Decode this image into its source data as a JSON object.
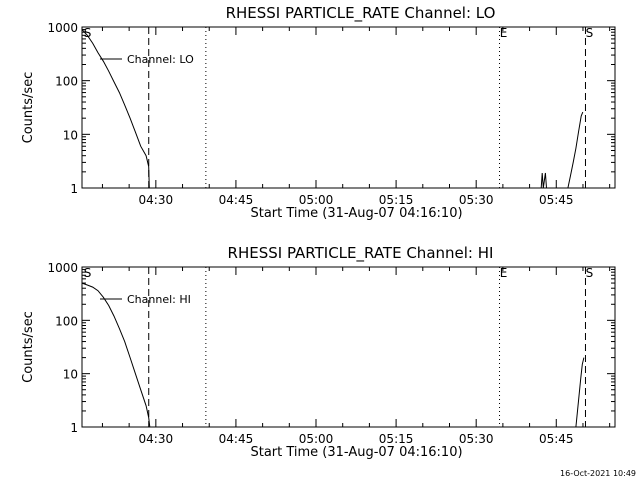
{
  "footer": {
    "timestamp": "16-Oct-2021 10:49"
  },
  "chart_data": [
    {
      "type": "line",
      "title": "RHESSI PARTICLE_RATE Channel: LO",
      "xlabel": "Start Time (31-Aug-07 04:16:10)",
      "ylabel": "Counts/sec",
      "x_unit": "minutes after 04:16:10",
      "xlim": [
        0,
        99.83
      ],
      "ylim": [
        1,
        1000
      ],
      "yscale": "log",
      "x_ticks": [
        {
          "value": 13.83,
          "label": "04:30"
        },
        {
          "value": 28.83,
          "label": "04:45"
        },
        {
          "value": 43.83,
          "label": "05:00"
        },
        {
          "value": 58.83,
          "label": "05:15"
        },
        {
          "value": 73.83,
          "label": "05:30"
        },
        {
          "value": 88.83,
          "label": "05:45"
        }
      ],
      "y_ticks": [
        {
          "value": 1,
          "label": "1"
        },
        {
          "value": 10,
          "label": "10"
        },
        {
          "value": 100,
          "label": "100"
        },
        {
          "value": 1000,
          "label": "1000"
        }
      ],
      "legend": "Channel: LO",
      "markers": [
        {
          "x": 0.3,
          "label": "S",
          "style": "none"
        },
        {
          "x": 12.5,
          "label": "",
          "style": "dashed"
        },
        {
          "x": 23.2,
          "label": "",
          "style": "dotted"
        },
        {
          "x": 78.2,
          "label": "E",
          "style": "dotted"
        },
        {
          "x": 94.3,
          "label": "S",
          "style": "dashed"
        }
      ],
      "series": [
        {
          "name": "Channel: LO",
          "segments": [
            [
              [
                0,
                900
              ],
              [
                1,
                700
              ],
              [
                2,
                500
              ],
              [
                3,
                330
              ],
              [
                4,
                230
              ],
              [
                5,
                150
              ],
              [
                6,
                95
              ],
              [
                7,
                60
              ],
              [
                8,
                35
              ],
              [
                9,
                20
              ],
              [
                10,
                11
              ],
              [
                11,
                6
              ],
              [
                12,
                4
              ],
              [
                12.5,
                2.5
              ],
              [
                12.6,
                1
              ]
            ],
            [
              [
                86.0,
                1
              ],
              [
                86.2,
                1.9
              ],
              [
                86.4,
                1
              ],
              [
                86.8,
                1.9
              ],
              [
                87.0,
                1
              ]
            ],
            [
              [
                91.0,
                1
              ],
              [
                91.5,
                1.7
              ],
              [
                92.0,
                3
              ],
              [
                92.5,
                5.5
              ],
              [
                93.0,
                11
              ],
              [
                93.5,
                22
              ],
              [
                93.8,
                26
              ]
            ]
          ]
        }
      ]
    },
    {
      "type": "line",
      "title": "RHESSI PARTICLE_RATE Channel: HI",
      "xlabel": "Start Time (31-Aug-07 04:16:10)",
      "ylabel": "Counts/sec",
      "x_unit": "minutes after 04:16:10",
      "xlim": [
        0,
        99.83
      ],
      "ylim": [
        1,
        1000
      ],
      "yscale": "log",
      "x_ticks": [
        {
          "value": 13.83,
          "label": "04:30"
        },
        {
          "value": 28.83,
          "label": "04:45"
        },
        {
          "value": 43.83,
          "label": "05:00"
        },
        {
          "value": 58.83,
          "label": "05:15"
        },
        {
          "value": 73.83,
          "label": "05:30"
        },
        {
          "value": 88.83,
          "label": "05:45"
        }
      ],
      "y_ticks": [
        {
          "value": 1,
          "label": "1"
        },
        {
          "value": 10,
          "label": "10"
        },
        {
          "value": 100,
          "label": "100"
        },
        {
          "value": 1000,
          "label": "1000"
        }
      ],
      "legend": "Channel: HI",
      "markers": [
        {
          "x": 0.3,
          "label": "S",
          "style": "none"
        },
        {
          "x": 12.5,
          "label": "",
          "style": "dashed"
        },
        {
          "x": 23.2,
          "label": "",
          "style": "dotted"
        },
        {
          "x": 78.2,
          "label": "E",
          "style": "dotted"
        },
        {
          "x": 94.3,
          "label": "S",
          "style": "dashed"
        }
      ],
      "series": [
        {
          "name": "Channel: HI",
          "segments": [
            [
              [
                0,
                500
              ],
              [
                1,
                460
              ],
              [
                2,
                420
              ],
              [
                3,
                360
              ],
              [
                4,
                270
              ],
              [
                5,
                190
              ],
              [
                6,
                120
              ],
              [
                7,
                70
              ],
              [
                8,
                40
              ],
              [
                9,
                20
              ],
              [
                10,
                10
              ],
              [
                11,
                5
              ],
              [
                12,
                2.5
              ],
              [
                12.5,
                1.5
              ],
              [
                12.7,
                1
              ]
            ],
            [
              [
                92.5,
                1
              ],
              [
                92.8,
                2
              ],
              [
                93.1,
                4
              ],
              [
                93.4,
                8
              ],
              [
                93.7,
                15
              ],
              [
                94.0,
                20
              ]
            ]
          ]
        }
      ]
    }
  ]
}
